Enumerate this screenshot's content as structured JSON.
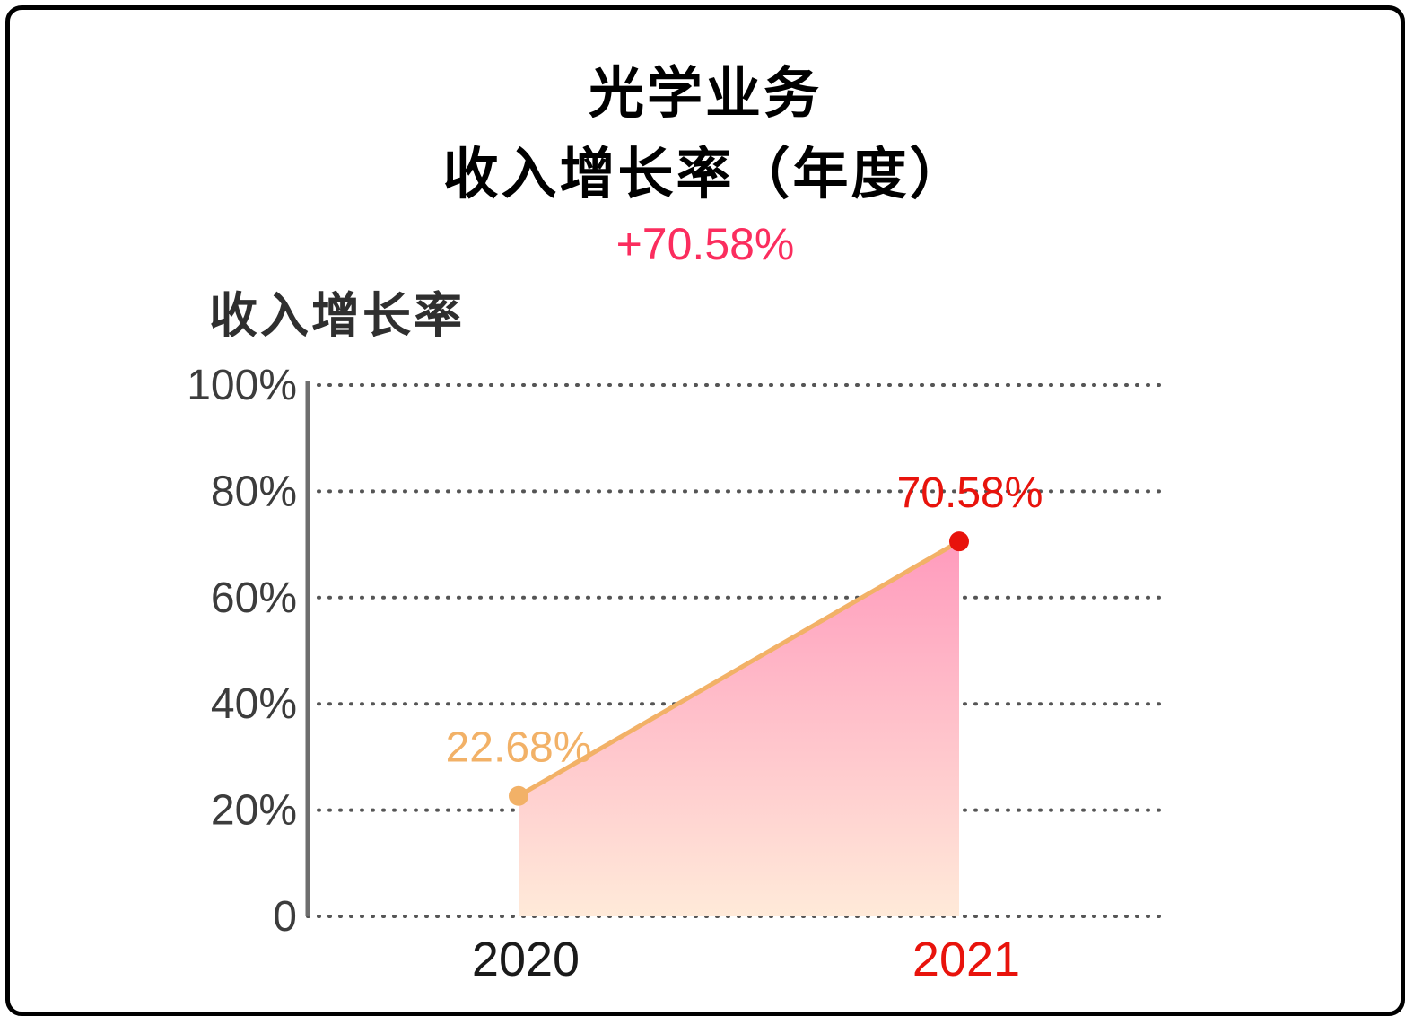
{
  "header": {
    "title_line1": "光学业务",
    "title_line2": "收入增长率（年度）",
    "subtitle": "+70.58%"
  },
  "chart_data": {
    "type": "area",
    "title": "光学业务 收入增长率（年度）",
    "ylabel": "收入增长率",
    "categories": [
      "2020",
      "2021"
    ],
    "series": [
      {
        "name": "收入增长率",
        "values": [
          22.68,
          70.58
        ]
      }
    ],
    "point_labels": [
      "22.68%",
      "70.58%"
    ],
    "ylim": [
      0,
      100
    ],
    "yticks": [
      0,
      20,
      40,
      60,
      80,
      100
    ],
    "ytick_labels": [
      "0",
      "20%",
      "40%",
      "60%",
      "80%",
      "100%"
    ],
    "grid": "horizontal-dotted",
    "legend": "none",
    "colors": {
      "line": "#F2B167",
      "points": [
        "#F2B167",
        "#E8130C"
      ],
      "point_label_colors": [
        "#F2B167",
        "#E8130C"
      ],
      "xlabel_colors": [
        "#1A1A1A",
        "#E8130C"
      ],
      "area_gradient": [
        "#FF9BBD",
        "#FFEAD9"
      ],
      "grid_color": "#555555",
      "axis_color": "#6E6E6E",
      "tick_text_color": "#3C3C3C",
      "subtitle_color": "#FB2D5E",
      "title_color": "#000000"
    }
  }
}
